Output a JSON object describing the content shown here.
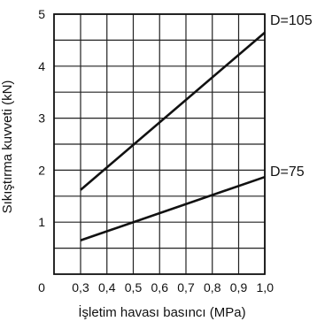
{
  "chart_data": {
    "type": "line",
    "title": "",
    "xlabel": "İşletim havası basıncı (MPa)",
    "ylabel": "Sıkıştırma kuvveti (kN)",
    "xlim": [
      0,
      1.0
    ],
    "ylim": [
      0,
      5
    ],
    "x_ticks": [
      "0",
      "0,3",
      "0,4",
      "0,5",
      "0,6",
      "0,7",
      "0,8",
      "0,9",
      "1,0"
    ],
    "y_ticks": [
      "0",
      "1",
      "2",
      "3",
      "4",
      "5"
    ],
    "grid": true,
    "series": [
      {
        "name": "D=105",
        "x": [
          0.3,
          1.0
        ],
        "y": [
          1.62,
          4.65
        ]
      },
      {
        "name": "D=75",
        "x": [
          0.3,
          1.0
        ],
        "y": [
          0.65,
          1.87
        ]
      }
    ],
    "colors": {
      "line": "#111111",
      "grid": "#222222",
      "background": "#ffffff"
    }
  }
}
